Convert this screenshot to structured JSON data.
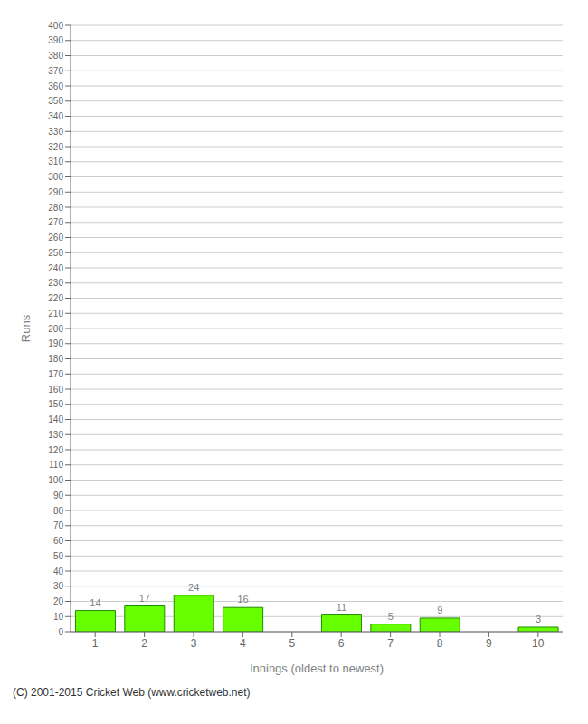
{
  "chart_data": {
    "type": "bar",
    "xlabel": "Innings (oldest to newest)",
    "ylabel": "Runs",
    "categories": [
      "1",
      "2",
      "3",
      "4",
      "5",
      "6",
      "7",
      "8",
      "9",
      "10"
    ],
    "values": [
      14,
      17,
      24,
      16,
      0,
      11,
      5,
      9,
      0,
      3
    ],
    "color": "#66ff00",
    "ylim": [
      0,
      400
    ],
    "yticks": [
      0,
      10,
      20,
      30,
      40,
      50,
      60,
      70,
      80,
      90,
      100,
      110,
      120,
      130,
      140,
      150,
      160,
      170,
      180,
      190,
      200,
      210,
      220,
      230,
      240,
      250,
      260,
      270,
      280,
      290,
      300,
      310,
      320,
      330,
      340,
      350,
      360,
      370,
      380,
      390,
      400
    ],
    "grid": true,
    "data_labels": true,
    "annotations": [
      "(C) 2001-2015 Cricket Web (www.cricketweb.net)"
    ]
  }
}
